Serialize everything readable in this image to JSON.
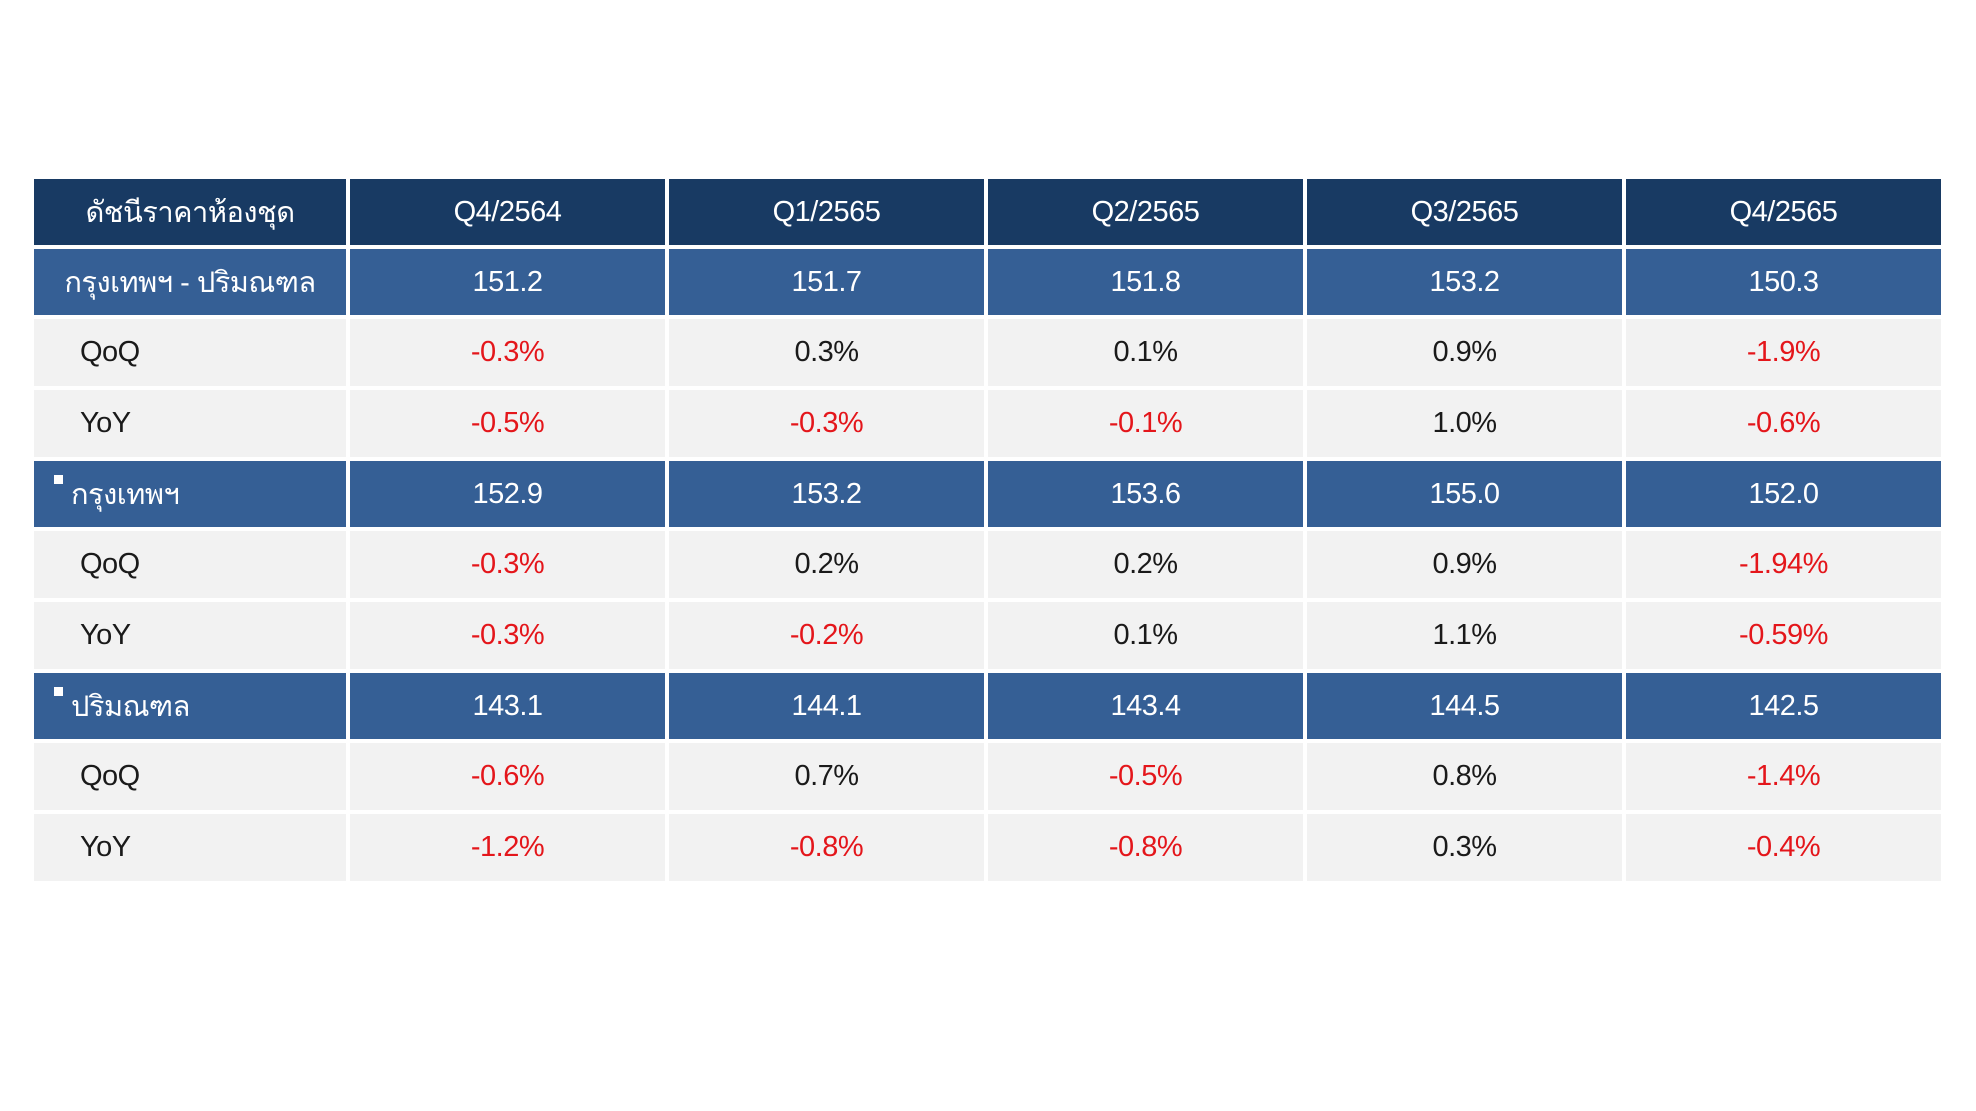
{
  "chart_data": {
    "type": "table",
    "header": {
      "label": "ดัชนีราคาห้องชุด",
      "quarters": [
        "Q4/2564",
        "Q1/2565",
        "Q2/2565",
        "Q3/2565",
        "Q4/2565"
      ]
    },
    "sections": [
      {
        "name": "กรุงเทพฯ - ปริมณฑล",
        "bullet": false,
        "index": [
          "151.2",
          "151.7",
          "151.8",
          "153.2",
          "150.3"
        ],
        "qoq_label": "QoQ",
        "qoq": [
          "-0.3%",
          "0.3%",
          "0.1%",
          "0.9%",
          "-1.9%"
        ],
        "yoy_label": "YoY",
        "yoy": [
          "-0.5%",
          "-0.3%",
          "-0.1%",
          "1.0%",
          "-0.6%"
        ]
      },
      {
        "name": "กรุงเทพฯ",
        "bullet": true,
        "index": [
          "152.9",
          "153.2",
          "153.6",
          "155.0",
          "152.0"
        ],
        "qoq_label": "QoQ",
        "qoq": [
          "-0.3%",
          "0.2%",
          "0.2%",
          "0.9%",
          "-1.94%"
        ],
        "yoy_label": "YoY",
        "yoy": [
          "-0.3%",
          "-0.2%",
          "0.1%",
          "1.1%",
          "-0.59%"
        ]
      },
      {
        "name": "ปริมณฑล",
        "bullet": true,
        "index": [
          "143.1",
          "144.1",
          "143.4",
          "144.5",
          "142.5"
        ],
        "qoq_label": "QoQ",
        "qoq": [
          "-0.6%",
          "0.7%",
          "-0.5%",
          "0.8%",
          "-1.4%"
        ],
        "yoy_label": "YoY",
        "yoy": [
          "-1.2%",
          "-0.8%",
          "-0.8%",
          "0.3%",
          "-0.4%"
        ]
      }
    ],
    "colors": {
      "header_bg": "#183a63",
      "index_row_bg": "#355f95",
      "change_row_bg": "#f2f2f2",
      "negative_text": "#e4161b",
      "positive_text": "#1a1a1a"
    }
  }
}
